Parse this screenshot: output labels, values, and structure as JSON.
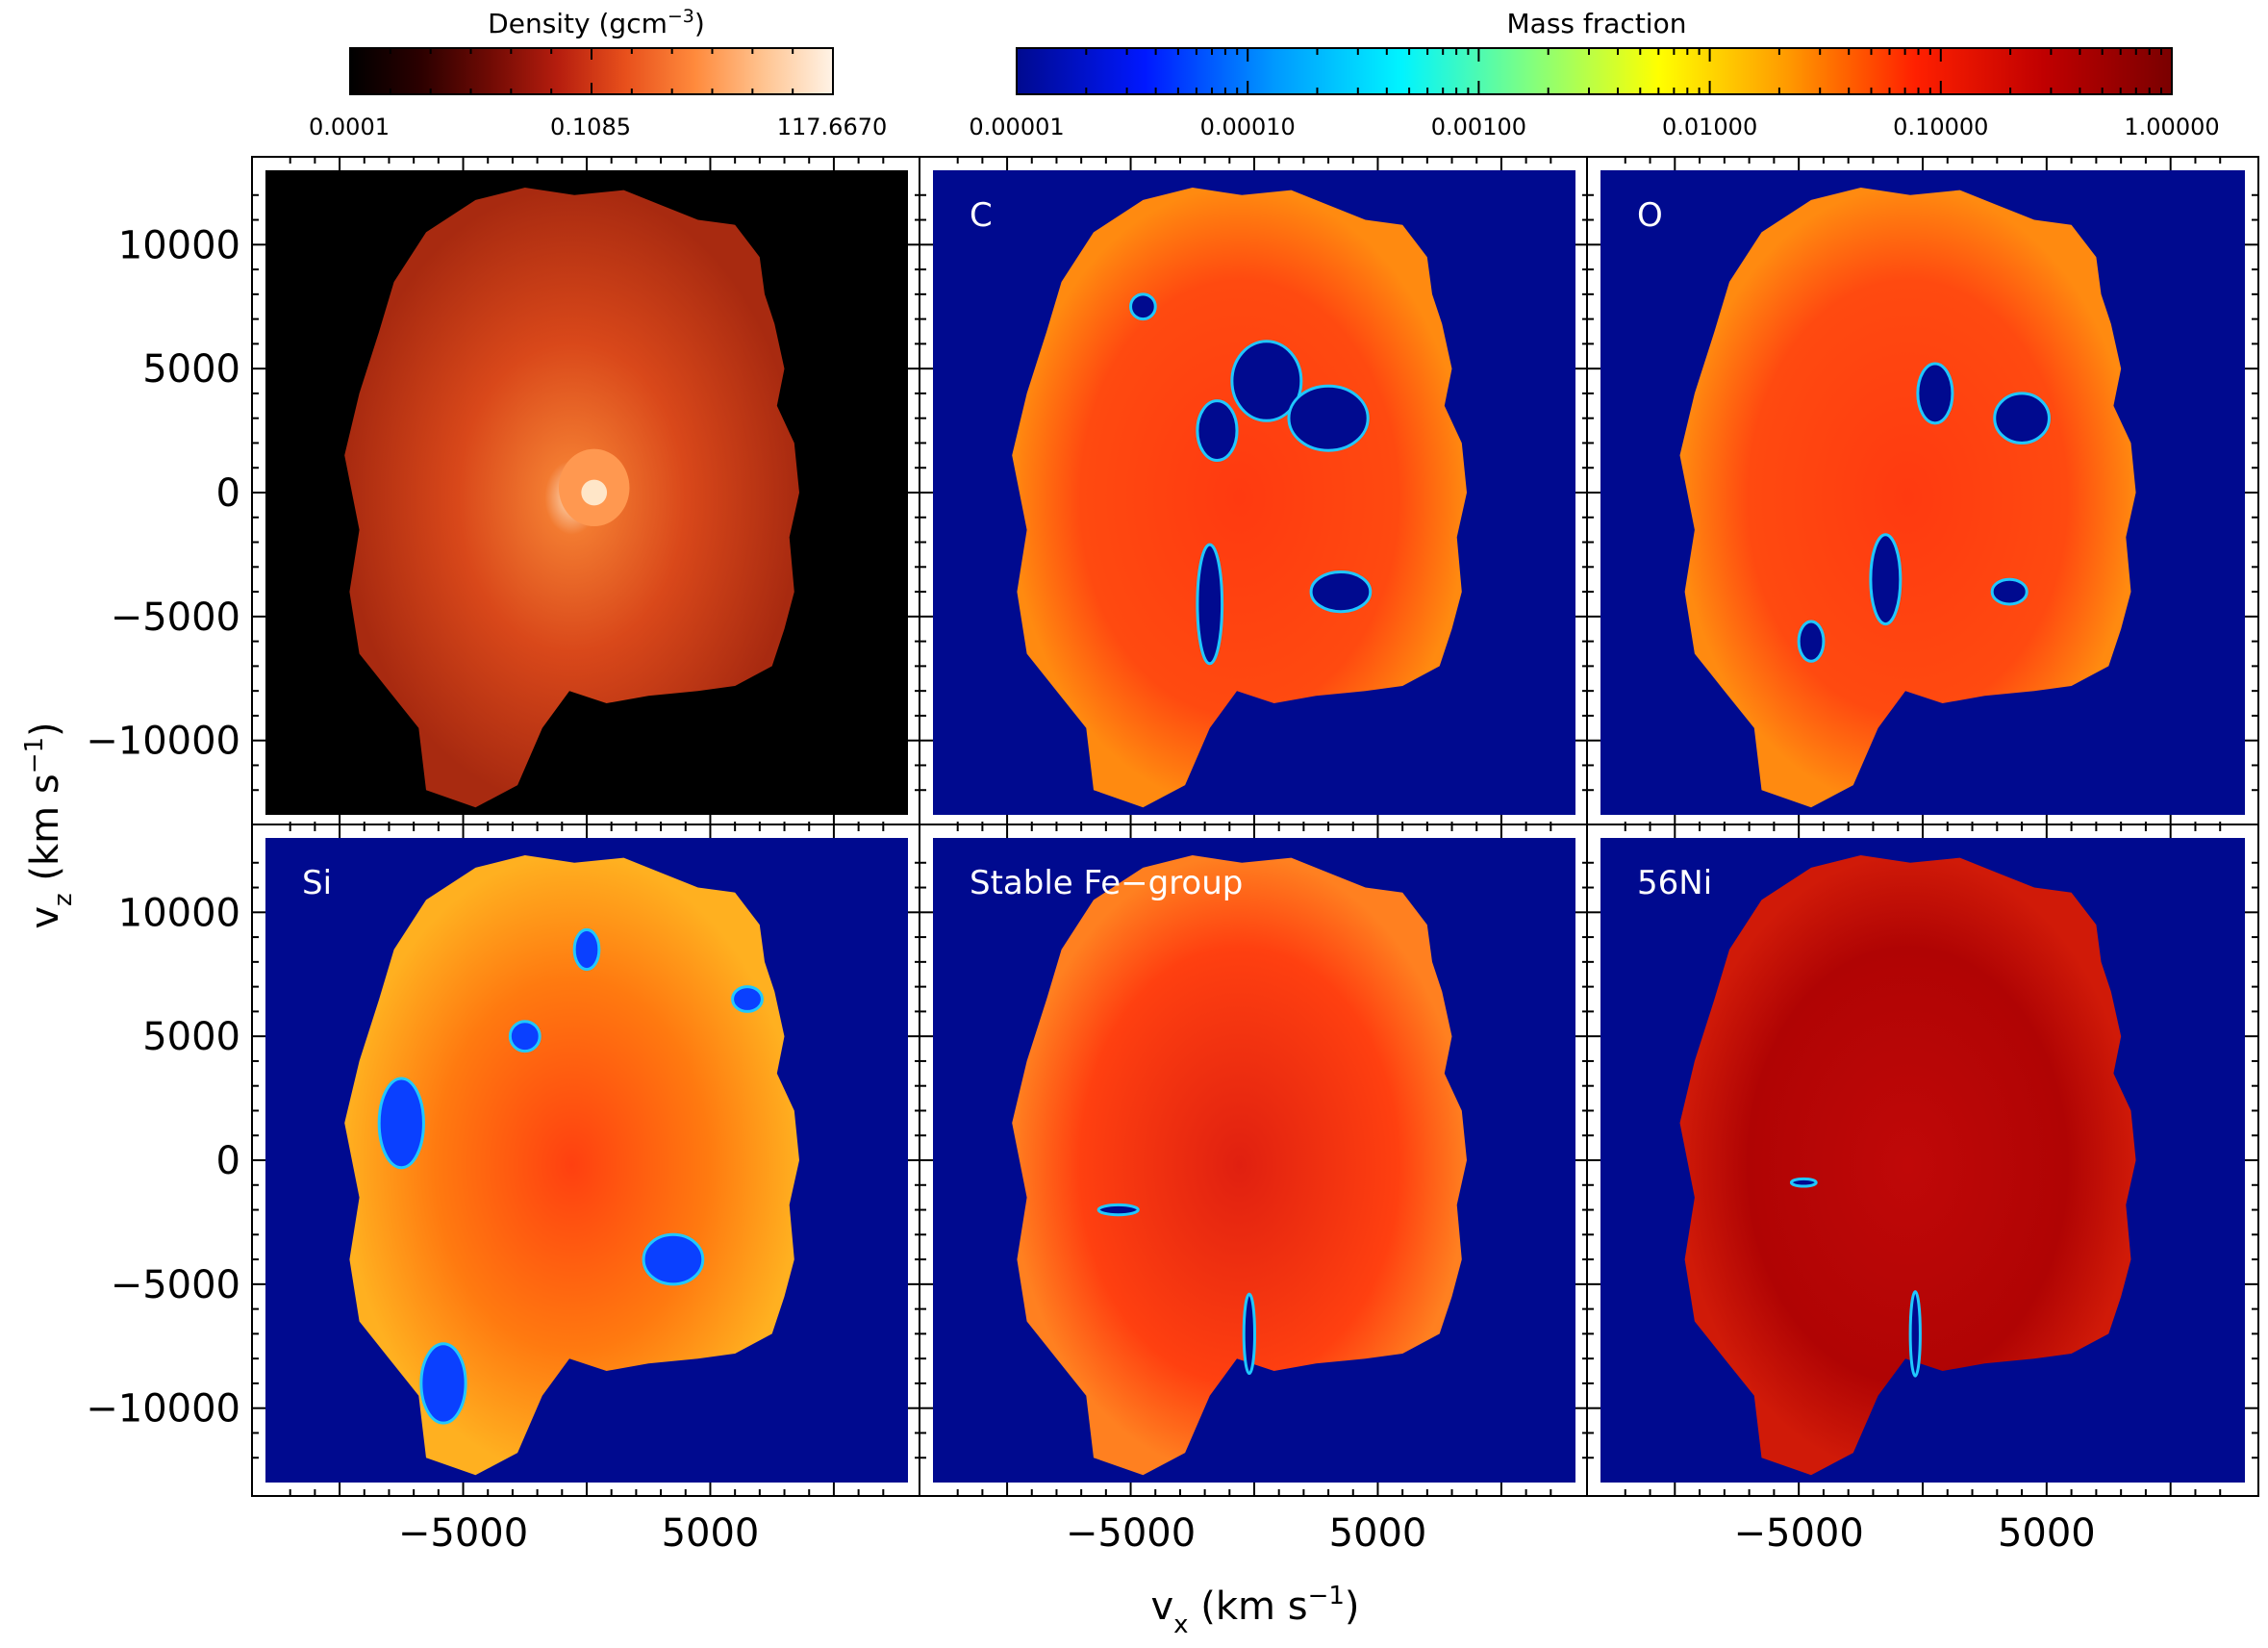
{
  "chart_data": {
    "type": "heatmap",
    "colorbars": [
      {
        "title": "Density (gcm",
        "title_sup": "−3",
        "title_end": ")",
        "scale": "log",
        "tick_labels": [
          "0.0001",
          "0.1085",
          "117.6670"
        ],
        "stops": [
          "#000000",
          "#2a0000",
          "#6e0a04",
          "#b51d0e",
          "#e8501c",
          "#ff8a3c",
          "#ffc491",
          "#fff3e6"
        ]
      },
      {
        "title": "Mass fraction",
        "scale": "log",
        "tick_labels": [
          "0.00001",
          "0.00010",
          "0.00100",
          "0.01000",
          "0.10000",
          "1.00000"
        ],
        "stops": [
          "#000a8f",
          "#0018ff",
          "#0098ff",
          "#00f4ff",
          "#80ff80",
          "#ffff00",
          "#ff9a00",
          "#ff2000",
          "#c00000",
          "#7a0000"
        ]
      }
    ],
    "panels": [
      {
        "label": "",
        "colormap": "density"
      },
      {
        "label": "C",
        "colormap": "mass"
      },
      {
        "label": "O",
        "colormap": "mass"
      },
      {
        "label": "Si",
        "colormap": "mass"
      },
      {
        "label": "Stable Fe−group",
        "colormap": "mass"
      },
      {
        "label": "56Ni",
        "colormap": "mass"
      }
    ],
    "xlabel": {
      "base": "v",
      "sub": "x",
      "rest": " (km s",
      "sup": "−1",
      "end": ")"
    },
    "ylabel": {
      "base": "v",
      "sub": "z",
      "rest": " (km s",
      "sup": "−1",
      "end": ")"
    },
    "xlim": [
      -13000,
      13000
    ],
    "ylim": [
      -13000,
      13000
    ],
    "x_ticks": [
      -5000,
      5000
    ],
    "x_tick_labels": [
      "−5000",
      "5000"
    ],
    "y_ticks": [
      10000,
      5000,
      0,
      -5000,
      -10000
    ],
    "y_tick_labels": [
      "10000",
      "5000",
      "0",
      "−5000",
      "−10000"
    ]
  }
}
